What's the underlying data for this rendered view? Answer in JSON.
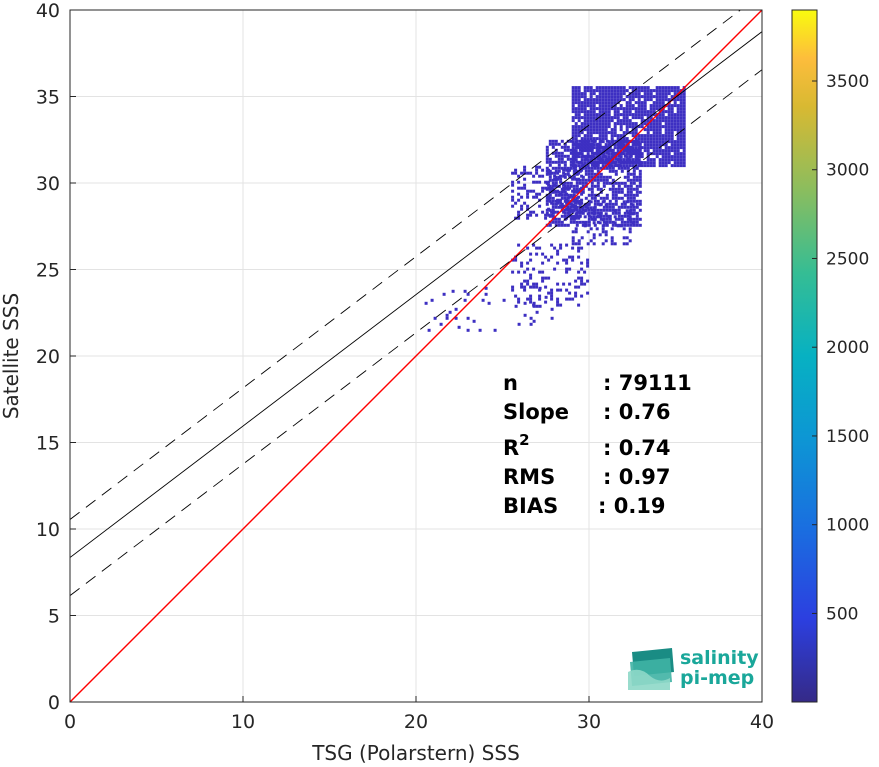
{
  "chart_data": {
    "type": "scatter",
    "style": "density",
    "xlabel": "TSG (Polarstern) SSS",
    "ylabel": "Satellite SSS",
    "xlim": [
      0,
      40
    ],
    "ylim": [
      0,
      40
    ],
    "xticks": [
      0,
      10,
      20,
      30,
      40
    ],
    "yticks": [
      0,
      5,
      10,
      15,
      20,
      25,
      30,
      35,
      40
    ],
    "grid": true,
    "colorbar": {
      "ticks": [
        500,
        1000,
        1500,
        2000,
        2500,
        3000,
        3500
      ],
      "range": [
        1,
        3900
      ],
      "colormap": "parula"
    },
    "lines": [
      {
        "role": "one-to-one",
        "color": "#ff0000",
        "style": "solid",
        "slope": 1,
        "intercept": 0
      },
      {
        "role": "fit",
        "color": "#000000",
        "style": "solid",
        "slope": 0.76,
        "intercept": 8.35
      },
      {
        "role": "fit-upper",
        "color": "#000000",
        "style": "dashed",
        "slope": 0.76,
        "intercept": 10.55
      },
      {
        "role": "fit-lower",
        "color": "#000000",
        "style": "dashed",
        "slope": 0.76,
        "intercept": 6.15
      }
    ],
    "density_regions": [
      {
        "x": [
          29.0,
          35.5
        ],
        "y": [
          31.0,
          35.6
        ],
        "weight": 1.0
      },
      {
        "x": [
          27.5,
          33.0
        ],
        "y": [
          27.5,
          32.5
        ],
        "weight": 0.8
      },
      {
        "x": [
          25.5,
          29.5
        ],
        "y": [
          28.0,
          31.0
        ],
        "weight": 0.45
      },
      {
        "x": [
          29.0,
          32.5
        ],
        "y": [
          26.5,
          29.0
        ],
        "weight": 0.4
      },
      {
        "x": [
          25.5,
          30.0
        ],
        "y": [
          23.0,
          26.5
        ],
        "weight": 0.25
      },
      {
        "x": [
          20.5,
          28.0
        ],
        "y": [
          21.5,
          24.0
        ],
        "weight": 0.08
      }
    ],
    "stats": [
      {
        "label": "n",
        "label_sup": "",
        "value": ": 79111"
      },
      {
        "label": "Slope",
        "label_sup": "",
        "value": ": 0.76"
      },
      {
        "label": "R",
        "label_sup": "2",
        "value": ": 0.74"
      },
      {
        "label": "RMS",
        "label_sup": "",
        "value": ": 0.97"
      },
      {
        "label": "BIAS",
        "label_sup": "",
        "value": ": 0.19"
      }
    ],
    "logo": {
      "line1": "salinity",
      "line2": "pi-mep"
    }
  },
  "colors": {
    "point": "#3d2fc2",
    "one_to_one": "#ff0000",
    "fit": "#000000",
    "grid": "#e3e3e3",
    "axis": "#262626"
  }
}
